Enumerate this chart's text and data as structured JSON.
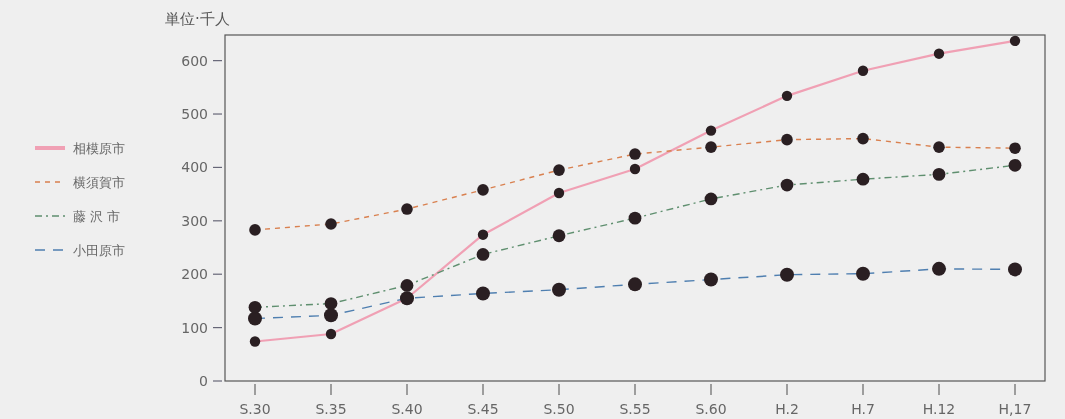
{
  "chart_data": {
    "type": "line",
    "ylabel": "単位·千人",
    "categories": [
      "S.30",
      "S.35",
      "S.40",
      "S.45",
      "S.50",
      "S.55",
      "S.60",
      "H.2",
      "H.7",
      "H.12",
      "H,17"
    ],
    "ylim": [
      0,
      648
    ],
    "yticks": [
      0,
      100,
      200,
      300,
      400,
      500,
      600
    ],
    "grid": false,
    "legend": "left",
    "marker": "circle",
    "series": [
      {
        "name": "相模原市",
        "color": "#f0a0b4",
        "line_style": "solid",
        "values": [
          74,
          88,
          155,
          274,
          352,
          397,
          469,
          534,
          581,
          613,
          637
        ]
      },
      {
        "name": "横須賀市",
        "color": "#d9804f",
        "line_style": "dashed",
        "values": [
          283,
          294,
          322,
          358,
          395,
          425,
          438,
          452,
          454,
          438,
          436
        ]
      },
      {
        "name": "藤 沢 市",
        "color": "#5f8f6f",
        "line_style": "dashdot",
        "values": [
          138,
          145,
          179,
          237,
          272,
          305,
          341,
          367,
          378,
          387,
          404
        ]
      },
      {
        "name": "小田原市",
        "color": "#4f7fb0",
        "line_style": "longdash",
        "values": [
          117,
          123,
          155,
          164,
          171,
          181,
          190,
          199,
          201,
          210,
          209
        ]
      }
    ]
  }
}
